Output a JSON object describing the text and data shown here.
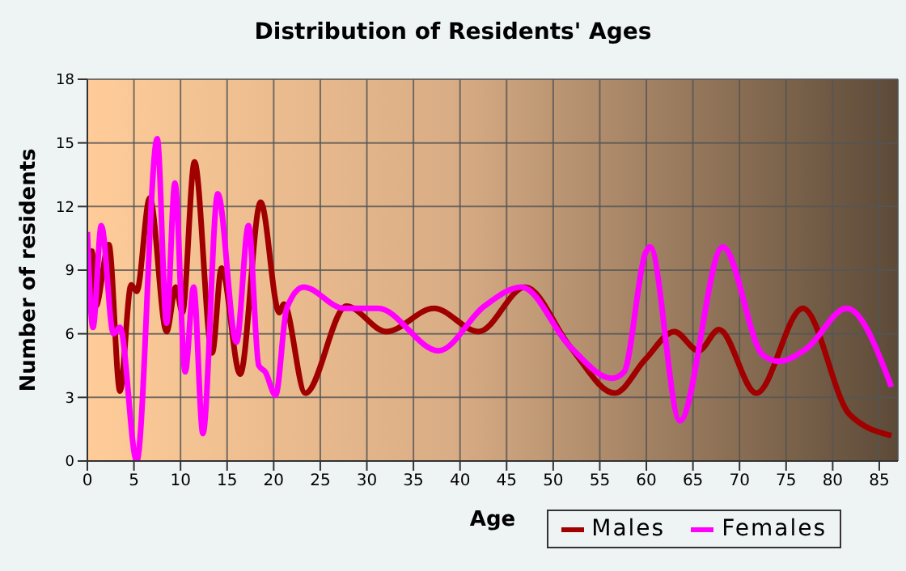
{
  "chart_data": {
    "type": "line",
    "title": "Distribution of Residents' Ages",
    "xlabel": "Age",
    "ylabel": "Number of residents",
    "xlim": [
      0,
      87
    ],
    "xticks": [
      0,
      5,
      10,
      15,
      20,
      25,
      30,
      35,
      40,
      45,
      50,
      55,
      60,
      65,
      70,
      75,
      80,
      85
    ],
    "ylim": [
      0,
      18
    ],
    "yticks": [
      0,
      3,
      6,
      9,
      12,
      15,
      18
    ],
    "grid": true,
    "legend": "bottom right",
    "marker": "none",
    "line_style": "solid",
    "series": [
      {
        "name": "Males",
        "color": "#a00000",
        "x": [
          0,
          0.5,
          0.9,
          2.3,
          3.5,
          4.7,
          5.3,
          6.7,
          8.5,
          9.5,
          10.2,
          11.5,
          13.4,
          14.4,
          16.4,
          18.6,
          20.6,
          21.1,
          23.4,
          27.8,
          32.1,
          37.2,
          42,
          47,
          51.8,
          56.6,
          59.9,
          63,
          65.6,
          67.8,
          71.8,
          76.8,
          81.8,
          86.3
        ],
        "values": [
          7.2,
          9.9,
          7.3,
          10.2,
          3.3,
          8.3,
          8,
          12.4,
          6.1,
          8.2,
          7,
          14.1,
          5.1,
          9.1,
          4.1,
          12.2,
          7,
          7.4,
          3.2,
          7.3,
          6.1,
          7.2,
          6.1,
          8.2,
          5.4,
          3.2,
          4.8,
          6.1,
          5.2,
          6.2,
          3.2,
          7.2,
          2.2,
          1.2
        ]
      },
      {
        "name": "Females",
        "color": "#ff00ff",
        "x": [
          0,
          0.6,
          1.5,
          2.8,
          3.5,
          5.3,
          7.5,
          8.5,
          9.4,
          10.5,
          11.4,
          12.4,
          14,
          16,
          17.3,
          18.4,
          19.1,
          20.2,
          21.4,
          23.2,
          27.5,
          31.2,
          37.7,
          42.6,
          46.6,
          51.8,
          56.3,
          57.6,
          59.9,
          60.4,
          63.6,
          68.2,
          72.5,
          74.2,
          77.2,
          81.5,
          86.3
        ],
        "values": [
          10.8,
          6.3,
          11.1,
          6,
          6.3,
          0,
          15.2,
          6.5,
          13.1,
          4.2,
          8.2,
          1.3,
          12.6,
          5.6,
          11.1,
          4.5,
          4.2,
          3.1,
          7.2,
          8.2,
          7.2,
          7.2,
          5.2,
          7.3,
          8.2,
          5.4,
          3.9,
          4.2,
          9.8,
          10.1,
          1.9,
          10.1,
          5,
          4.7,
          5.3,
          7.2,
          3.5
        ]
      }
    ]
  }
}
